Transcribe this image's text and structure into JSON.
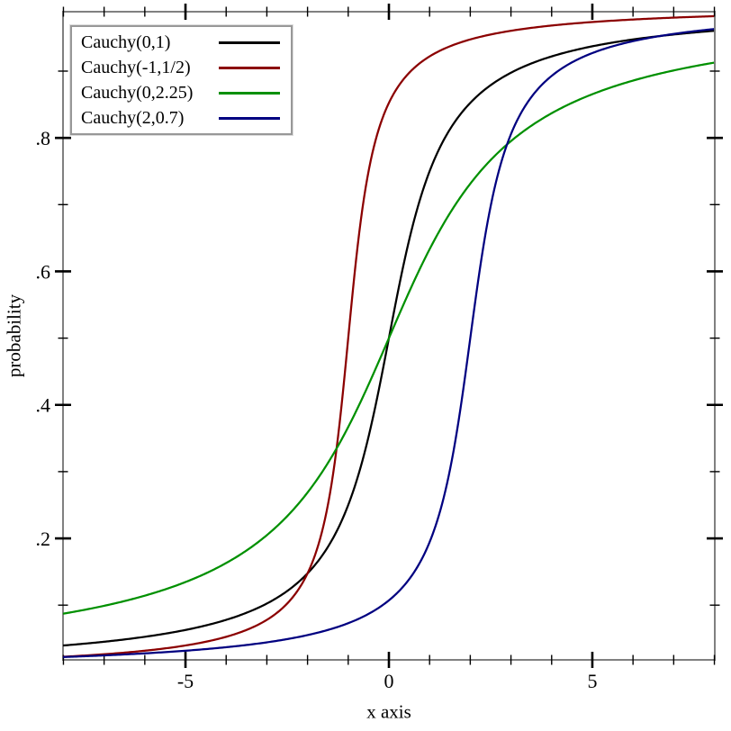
{
  "chart_data": {
    "type": "line",
    "subtype": "cdf-curves",
    "title": "",
    "xlabel": "x axis",
    "ylabel": "probability",
    "x_range": [
      -8.01,
      8.01
    ],
    "y_range": [
      0.018,
      0.989
    ],
    "grid": false,
    "legend_position": "top-left",
    "x_ticks": {
      "major": [
        {
          "v": -5,
          "label": "-5"
        },
        {
          "v": 0,
          "label": "0"
        },
        {
          "v": 5,
          "label": "5"
        }
      ],
      "minor": [
        -8,
        -7,
        -6,
        -4,
        -3,
        -2,
        -1,
        1,
        2,
        3,
        4,
        6,
        7,
        8
      ]
    },
    "y_ticks": {
      "major": [
        {
          "v": 0.2,
          "label": ".2"
        },
        {
          "v": 0.4,
          "label": ".4"
        },
        {
          "v": 0.6,
          "label": ".6"
        },
        {
          "v": 0.8,
          "label": ".8"
        }
      ],
      "minor": [
        0.1,
        0.3,
        0.5,
        0.7,
        0.9
      ]
    },
    "curve_formula": "F(x) = 0.5 + atan((x - location) / scale) / pi",
    "series": [
      {
        "name": "Cauchy(0,1)",
        "distribution": "cauchy",
        "location": 0,
        "scale": 1,
        "color": "#000000"
      },
      {
        "name": "Cauchy(-1,1/2)",
        "distribution": "cauchy",
        "location": -1,
        "scale": 0.5,
        "color": "#8b0000"
      },
      {
        "name": "Cauchy(0,2.25)",
        "distribution": "cauchy",
        "location": 0,
        "scale": 2.25,
        "color": "#009000"
      },
      {
        "name": "Cauchy(2,0.7)",
        "distribution": "cauchy",
        "location": 2,
        "scale": 0.7,
        "color": "#000080"
      }
    ],
    "colors": {
      "axis": "#808080",
      "tick": "#000000",
      "background": "#ffffff",
      "legend_border": "#989898"
    }
  }
}
